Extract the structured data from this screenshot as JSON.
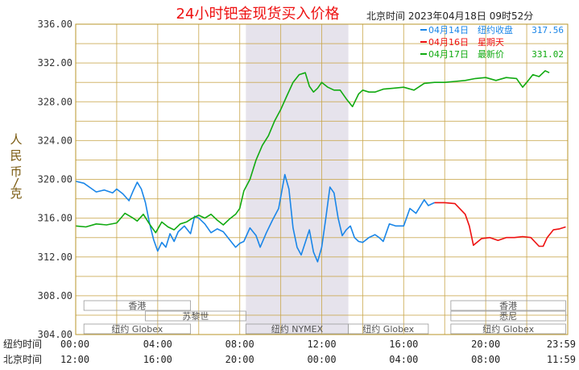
{
  "chart_data": {
    "type": "line",
    "title": "24小时钯金现货买入价格",
    "timestamp": "北京时间  2023年04月18日 09时52分",
    "ylabel": "人民币/克",
    "ylim": [
      304,
      336
    ],
    "y_ticks": [
      "304.00",
      "308.00",
      "312.00",
      "316.00",
      "320.00",
      "324.00",
      "328.00",
      "332.00",
      "336.00"
    ],
    "xlim": [
      0,
      24
    ],
    "x_axis_rows": [
      {
        "label": "纽约时间",
        "ticks": [
          "00:00",
          "04:00",
          "08:00",
          "12:00",
          "16:00",
          "20:00",
          "23:59"
        ]
      },
      {
        "label": "北京时间",
        "ticks": [
          "12:00",
          "16:00",
          "20:00",
          "00:00",
          "04:00",
          "08:00",
          "11:59"
        ]
      }
    ],
    "grid": true,
    "legend_position": "top-right",
    "legend": [
      {
        "date": "04月14日",
        "desc": "纽约收盘",
        "value": "317.56",
        "color": "#1a86e8"
      },
      {
        "date": "04月16日",
        "desc": "星期天",
        "value": "",
        "color": "#ee1111"
      },
      {
        "date": "04月17日",
        "desc": "最新价",
        "value": "331.02",
        "color": "#11aa11"
      }
    ],
    "nymex_session": [
      8.3,
      13.3
    ],
    "market_sessions": [
      {
        "label": "香港",
        "start": 0.4,
        "end": 5.6,
        "row": 1
      },
      {
        "label": "苏黎世",
        "start": 3.4,
        "end": 8.3,
        "row": 2
      },
      {
        "label": "纽约 Globex",
        "start": 0.4,
        "end": 5.6,
        "row": 3
      },
      {
        "label": "纽约 NYMEX",
        "start": 8.3,
        "end": 13.3,
        "row": 3
      },
      {
        "label": "纽约 Globex",
        "start": 13.3,
        "end": 17.2,
        "row": 3
      },
      {
        "label": "纽约 Globex",
        "start": 18.3,
        "end": 23.9,
        "row": 3
      },
      {
        "label": "悉尼",
        "start": 18.3,
        "end": 23.9,
        "row": 2
      },
      {
        "label": "香港",
        "start": 18.3,
        "end": 23.9,
        "row": 1
      }
    ],
    "series": [
      {
        "name": "04月14日",
        "color": "#1a86e8",
        "x": [
          0,
          0.4,
          0.8,
          1.0,
          1.4,
          1.8,
          2.0,
          2.3,
          2.6,
          2.8,
          3.0,
          3.2,
          3.4,
          3.6,
          3.8,
          4.0,
          4.2,
          4.4,
          4.6,
          4.8,
          5.0,
          5.3,
          5.6,
          5.8,
          6.0,
          6.3,
          6.6,
          6.9,
          7.2,
          7.5,
          7.8,
          8.0,
          8.2,
          8.5,
          8.8,
          9.0,
          9.3,
          9.6,
          9.9,
          10.2,
          10.4,
          10.6,
          10.8,
          11.0,
          11.2,
          11.4,
          11.6,
          11.8,
          12.0,
          12.2,
          12.4,
          12.6,
          12.8,
          13.0,
          13.2,
          13.4,
          13.6,
          13.8,
          14.0,
          14.3,
          14.6,
          14.8,
          15.0,
          15.3,
          15.6,
          16.0,
          16.3,
          16.6,
          17.0,
          17.2,
          17.5
        ],
        "values": [
          319.8,
          319.6,
          319.0,
          318.7,
          318.9,
          318.6,
          319.0,
          318.5,
          317.8,
          318.8,
          319.7,
          319.0,
          317.6,
          315.5,
          313.8,
          312.6,
          313.5,
          313.0,
          314.4,
          313.6,
          314.6,
          315.2,
          314.4,
          316.2,
          316.0,
          315.4,
          314.5,
          314.9,
          314.6,
          313.8,
          313.0,
          313.4,
          313.6,
          315.0,
          314.2,
          313.0,
          314.5,
          315.8,
          317.0,
          320.5,
          319.0,
          315.0,
          313.0,
          312.2,
          313.5,
          314.8,
          312.5,
          311.5,
          313.0,
          316.0,
          319.2,
          318.6,
          316.0,
          314.2,
          314.8,
          315.2,
          314.0,
          313.6,
          313.5,
          314.0,
          314.3,
          314.0,
          313.6,
          315.4,
          315.2,
          315.2,
          317.0,
          316.5,
          317.9,
          317.3,
          317.6
        ]
      },
      {
        "name": "04月16日",
        "color": "#ee1111",
        "x": [
          17.5,
          18.0,
          18.5,
          19.0,
          19.2,
          19.4,
          19.8,
          20.2,
          20.6,
          21.0,
          21.4,
          21.8,
          22.2,
          22.6,
          22.8,
          23.0,
          23.3,
          23.6,
          23.9
        ],
        "values": [
          317.6,
          317.6,
          317.5,
          316.4,
          315.2,
          313.2,
          313.9,
          314.0,
          313.7,
          314.0,
          314.0,
          314.1,
          314.0,
          313.1,
          313.1,
          314.0,
          314.8,
          314.9,
          315.1
        ]
      },
      {
        "name": "04月17日",
        "color": "#11aa11",
        "x": [
          0,
          0.5,
          1.0,
          1.5,
          2.0,
          2.4,
          2.8,
          3.0,
          3.3,
          3.6,
          3.9,
          4.2,
          4.5,
          4.8,
          5.1,
          5.4,
          5.7,
          6.0,
          6.3,
          6.6,
          6.9,
          7.2,
          7.5,
          7.8,
          8.0,
          8.2,
          8.5,
          8.8,
          9.1,
          9.4,
          9.7,
          10.0,
          10.3,
          10.6,
          10.9,
          11.2,
          11.4,
          11.6,
          11.8,
          12.0,
          12.3,
          12.6,
          12.9,
          13.2,
          13.5,
          13.8,
          14.0,
          14.3,
          14.6,
          15.0,
          15.5,
          16.0,
          16.5,
          17.0,
          17.5,
          18.0,
          18.5,
          19.0,
          19.5,
          20.0,
          20.5,
          21.0,
          21.5,
          21.8,
          22.0,
          22.3,
          22.6,
          22.9,
          23.1
        ],
        "values": [
          315.2,
          315.1,
          315.4,
          315.3,
          315.5,
          316.5,
          316.0,
          315.7,
          316.4,
          315.4,
          314.5,
          315.6,
          315.1,
          314.8,
          315.4,
          315.6,
          316.0,
          316.3,
          316.0,
          316.4,
          315.8,
          315.3,
          315.9,
          316.4,
          317.0,
          318.8,
          320.0,
          322.0,
          323.5,
          324.5,
          326.0,
          327.2,
          328.6,
          330.0,
          330.8,
          331.0,
          329.6,
          329.0,
          329.4,
          330.0,
          329.5,
          329.2,
          329.2,
          328.3,
          327.5,
          328.8,
          329.2,
          329.0,
          329.0,
          329.3,
          329.4,
          329.5,
          329.2,
          329.9,
          330.0,
          330.0,
          330.1,
          330.2,
          330.4,
          330.5,
          330.2,
          330.5,
          330.4,
          329.5,
          330.0,
          330.8,
          330.6,
          331.2,
          331.0
        ]
      }
    ]
  }
}
